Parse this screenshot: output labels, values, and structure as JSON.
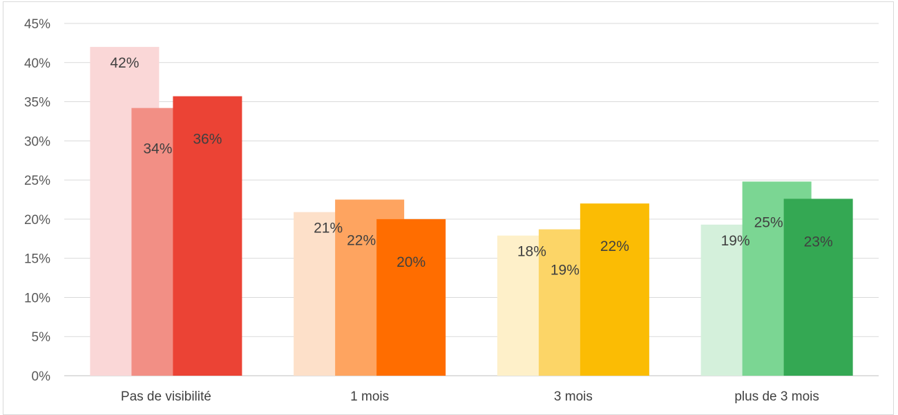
{
  "chart_data": {
    "type": "bar",
    "title": "",
    "xlabel": "",
    "ylabel": "",
    "ylim": [
      0,
      45
    ],
    "yticks": [
      0,
      5,
      10,
      15,
      20,
      25,
      30,
      35,
      40,
      45
    ],
    "ytick_labels": [
      "0%",
      "5%",
      "10%",
      "15%",
      "20%",
      "25%",
      "30%",
      "35%",
      "40%",
      "45%"
    ],
    "grid": true,
    "legend": "none",
    "categories": [
      "Pas de visibilité",
      "1 mois",
      "3 mois",
      "plus de 3 mois"
    ],
    "groups": [
      {
        "category": "Pas de visibilité",
        "values": [
          42,
          34.2,
          35.7
        ],
        "labels": [
          "42%",
          "34%",
          "36%"
        ],
        "colors": [
          "#fad7d7",
          "#f28f85",
          "#eb4335"
        ]
      },
      {
        "category": "1 mois",
        "values": [
          20.9,
          22.5,
          20
        ],
        "labels": [
          "21%",
          "22%",
          "20%"
        ],
        "colors": [
          "#fde0c9",
          "#fea460",
          "#ff6d00"
        ]
      },
      {
        "category": "3 mois",
        "values": [
          17.9,
          18.7,
          22
        ],
        "labels": [
          "18%",
          "19%",
          "22%"
        ],
        "colors": [
          "#fef0c9",
          "#fcd567",
          "#fbbc04"
        ]
      },
      {
        "category": "plus de 3 mois",
        "values": [
          19.3,
          24.8,
          22.6
        ],
        "labels": [
          "19%",
          "25%",
          "23%"
        ],
        "colors": [
          "#d4f0db",
          "#7bd693",
          "#34a853"
        ]
      }
    ]
  }
}
